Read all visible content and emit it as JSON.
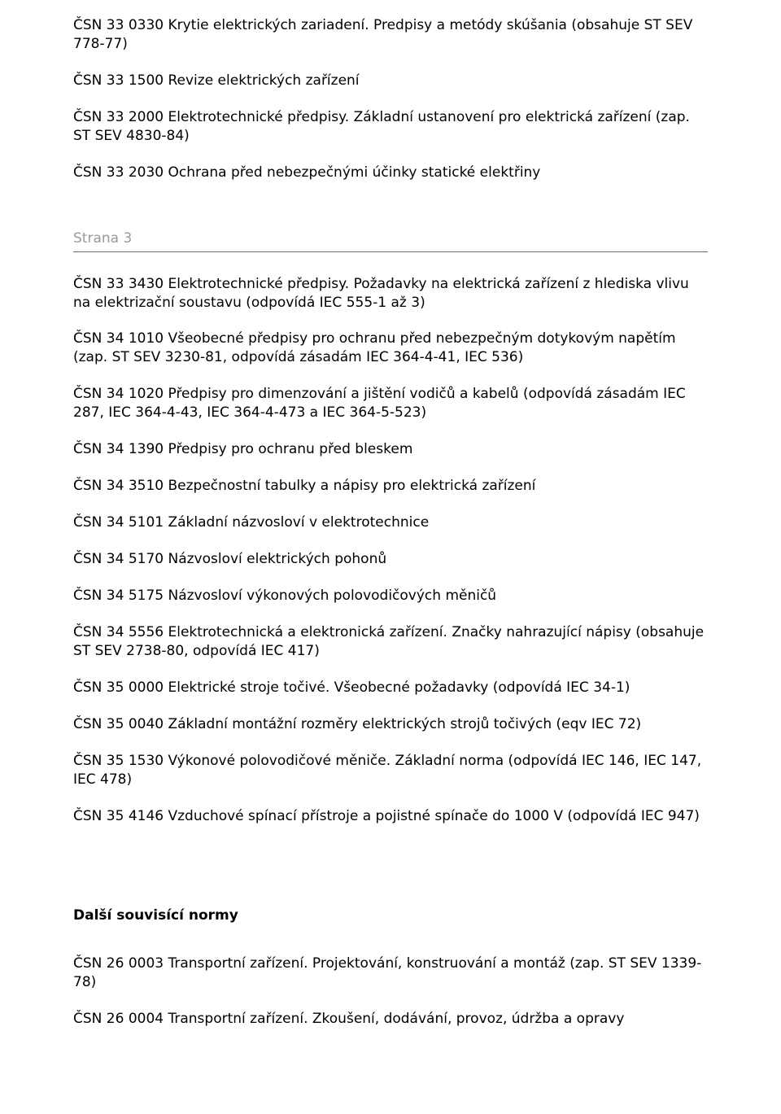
{
  "document": {
    "text_color": "#000000",
    "background_color": "#ffffff",
    "font_family": "DejaVu Sans, Verdana, Arial, sans-serif",
    "body_font_size_pt": 13,
    "page_marker_color": "#9a9a9a",
    "rule_color": "#707070"
  },
  "paragraphs": {
    "p0": "ČSN 33 0330 Krytie elektrických zariadení. Predpisy a metódy skúšania (obsahuje ST SEV 778-77)",
    "p1": "ČSN 33 1500 Revize elektrických zařízení",
    "p2": "ČSN 33 2000 Elektrotechnické předpisy. Základní ustanovení pro elektrická zařízení (zap. ST SEV 4830-84)",
    "p3": "ČSN 33 2030  Ochrana před nebezpečnými účinky statické elektřiny",
    "p4": "ČSN 33 3430 Elektrotechnické předpisy. Požadavky na elektrická zařízení z hlediska vlivu na elektrizační soustavu (odpovídá IEC 555-1 až 3)",
    "p5": "ČSN 34 1010 Všeobecné předpisy pro ochranu před nebezpečným dotykovým napětím (zap. ST SEV 3230-81, odpovídá zásadám IEC 364-4-41, IEC 536)",
    "p6": "ČSN 34 1020 Předpisy pro dimenzování a jištění vodičů a kabelů (odpovídá zásadám IEC 287, IEC 364-4-43, IEC 364-4-473 a IEC 364-5-523)",
    "p7": "ČSN 34 1390 Předpisy pro ochranu před bleskem",
    "p8": "ČSN 34 3510 Bezpečnostní tabulky a nápisy pro elektrická zařízení",
    "p9": "ČSN 34 5101 Základní názvosloví v elektrotechnice",
    "p10": "ČSN 34 5170 Názvosloví elektrických pohonů",
    "p11": "ČSN 34 5175 Názvosloví výkonových polovodičových měničů",
    "p12": "ČSN 34 5556 Elektrotechnická a elektronická zařízení. Značky nahrazující nápisy (obsahuje ST SEV 2738-80, odpovídá IEC 417)",
    "p13": "ČSN 35 0000 Elektrické stroje točivé. Všeobecné požadavky (odpovídá IEC 34-1)",
    "p14": "ČSN 35 0040 Základní montážní rozměry elektrických strojů točivých (eqv IEC 72)",
    "p15": "ČSN 35 1530 Výkonové polovodičové měniče. Základní norma (odpovídá IEC 146, IEC 147, IEC 478)",
    "p16": "ČSN 35 4146 Vzduchové spínací přístroje a pojistné spínače do 1000 V (odpovídá IEC 947)",
    "p17": "ČSN 26 0003 Transportní zařízení. Projektování, konstruování a montáž (zap. ST SEV 1339-78)",
    "p18": "ČSN 26 0004 Transportní zařízení. Zkoušení, dodávání, provoz, údržba a opravy"
  },
  "page_marker": "Strana 3",
  "section_heading": "Další souvisící normy"
}
